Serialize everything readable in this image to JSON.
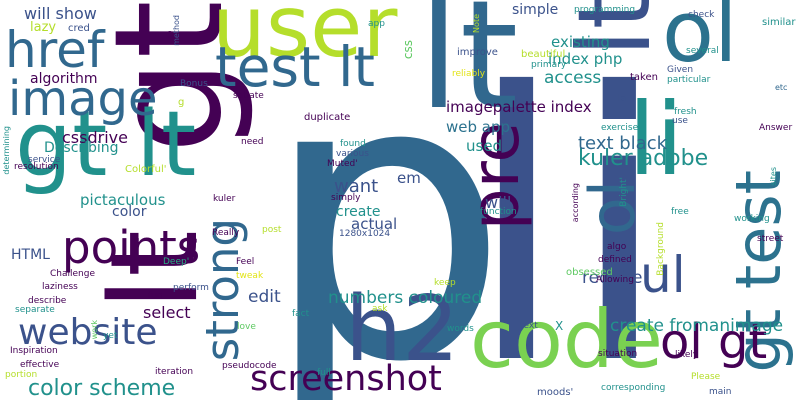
{
  "background": "#ffffff",
  "palette": {
    "dark_purple": "#440154",
    "indigo": "#3b528b",
    "steel_blue": "#31688e",
    "teal_blue": "#2c728e",
    "teal": "#21918c",
    "sea_green": "#28ae80",
    "green": "#5ec962",
    "light_green": "#7ad151",
    "lime": "#b5de2b",
    "yellow": "#e2e418"
  },
  "words": [
    {
      "text": "p",
      "color": "#31688e",
      "vertical": false
    },
    {
      "text": "li",
      "color": "#3b528b",
      "vertical": false
    },
    {
      "text": "lt",
      "color": "#31688e",
      "vertical": false
    },
    {
      "text": "gt",
      "color": "#440154",
      "vertical": true
    },
    {
      "text": "user",
      "color": "#b5de2b",
      "vertical": false
    },
    {
      "text": "ol",
      "color": "#2c728e",
      "vertical": false
    },
    {
      "text": "code",
      "color": "#7ad151",
      "vertical": false
    },
    {
      "text": "h2",
      "color": "#3b528b",
      "vertical": false
    },
    {
      "text": "lt",
      "color": "#440154",
      "vertical": true
    },
    {
      "text": "gt lt",
      "color": "#21918c",
      "vertical": false
    },
    {
      "text": "test lt",
      "color": "#31688e",
      "vertical": false
    },
    {
      "text": "href",
      "color": "#31688e",
      "vertical": false
    },
    {
      "text": "image",
      "color": "#31688e",
      "vertical": false
    },
    {
      "text": "gt test",
      "color": "#2c728e",
      "vertical": true
    },
    {
      "text": "pre",
      "color": "#440154",
      "vertical": true
    },
    {
      "text": "lt",
      "color": "#3b528b",
      "vertical": true
    },
    {
      "text": "ol",
      "color": "#31688e",
      "vertical": true
    },
    {
      "text": "ul",
      "color": "#3b528b",
      "vertical": false
    },
    {
      "text": "ol gt",
      "color": "#440154",
      "vertical": false
    },
    {
      "text": "li",
      "color": "#21918c",
      "vertical": false
    },
    {
      "text": "points",
      "color": "#440154",
      "vertical": false
    },
    {
      "text": "strong",
      "color": "#31688e",
      "vertical": true
    },
    {
      "text": "website",
      "color": "#3b528b",
      "vertical": false
    },
    {
      "text": "screenshot",
      "color": "#440154",
      "vertical": false
    },
    {
      "text": "color scheme",
      "color": "#21918c",
      "vertical": false
    },
    {
      "text": "kuler adobe",
      "color": "#21918c",
      "vertical": false
    },
    {
      "text": "text black",
      "color": "#31688e",
      "vertical": false
    },
    {
      "text": "create fromanimage",
      "color": "#21918c",
      "vertical": false
    },
    {
      "text": "numbers coloured",
      "color": "#21918c",
      "vertical": false
    },
    {
      "text": "will show",
      "color": "#3b528b",
      "vertical": false
    },
    {
      "text": "lazy",
      "color": "#b5de2b",
      "vertical": false
    },
    {
      "text": "cred",
      "color": "#3b528b",
      "vertical": false
    },
    {
      "text": "algorithm",
      "color": "#440154",
      "vertical": false
    },
    {
      "text": "cssdrive",
      "color": "#440154",
      "vertical": false
    },
    {
      "text": "Describing",
      "color": "#21918c",
      "vertical": false
    },
    {
      "text": "pictaculous",
      "color": "#21918c",
      "vertical": false
    },
    {
      "text": "color",
      "color": "#3b528b",
      "vertical": false
    },
    {
      "text": "HTML",
      "color": "#3b528b",
      "vertical": false
    },
    {
      "text": "edit",
      "color": "#3b528b",
      "vertical": false
    },
    {
      "text": "select",
      "color": "#440154",
      "vertical": false
    },
    {
      "text": "want",
      "color": "#3b528b",
      "vertical": false
    },
    {
      "text": "create",
      "color": "#21918c",
      "vertical": false
    },
    {
      "text": "actual",
      "color": "#3b528b",
      "vertical": false
    },
    {
      "text": "used",
      "color": "#21918c",
      "vertical": false
    },
    {
      "text": "will",
      "color": "#3b528b",
      "vertical": false
    },
    {
      "text": "em",
      "color": "#3b528b",
      "vertical": false
    },
    {
      "text": "web app",
      "color": "#2c728e",
      "vertical": false
    },
    {
      "text": "imagepalette index",
      "color": "#440154",
      "vertical": false
    },
    {
      "text": "access",
      "color": "#21918c",
      "vertical": false
    },
    {
      "text": "existing",
      "color": "#21918c",
      "vertical": false
    },
    {
      "text": "index php",
      "color": "#21918c",
      "vertical": false
    },
    {
      "text": "simple",
      "color": "#3b528b",
      "vertical": false
    },
    {
      "text": "require",
      "color": "#3b528b",
      "vertical": false
    },
    {
      "text": "css",
      "color": "#5ec962",
      "vertical": true
    },
    {
      "text": "improve",
      "color": "#3b528b",
      "vertical": false
    },
    {
      "text": "reliably",
      "color": "#e2e418",
      "vertical": false
    },
    {
      "text": "primary",
      "color": "#21918c",
      "vertical": false
    },
    {
      "text": "beautiful",
      "color": "#b5de2b",
      "vertical": false
    },
    {
      "text": "programming",
      "color": "#21918c",
      "vertical": false
    },
    {
      "text": "Given",
      "color": "#3b528b",
      "vertical": false
    },
    {
      "text": "particular",
      "color": "#21918c",
      "vertical": false
    },
    {
      "text": "taken",
      "color": "#440154",
      "vertical": false
    },
    {
      "text": "check",
      "color": "#3b528b",
      "vertical": false
    },
    {
      "text": "similar",
      "color": "#21918c",
      "vertical": false
    },
    {
      "text": "etc",
      "color": "#31688e",
      "vertical": false
    },
    {
      "text": "several",
      "color": "#21918c",
      "vertical": false
    },
    {
      "text": "app",
      "color": "#21918c",
      "vertical": false
    },
    {
      "text": "Note",
      "color": "#b5de2b",
      "vertical": true
    },
    {
      "text": "method",
      "color": "#3b528b",
      "vertical": true
    },
    {
      "text": "e",
      "color": "#440154",
      "vertical": false
    },
    {
      "text": "Bonus",
      "color": "#3b528b",
      "vertical": false
    },
    {
      "text": "satiate",
      "color": "#440154",
      "vertical": false
    },
    {
      "text": "duplicate",
      "color": "#440154",
      "vertical": false
    },
    {
      "text": "g",
      "color": "#b5de2b",
      "vertical": false
    },
    {
      "text": "need",
      "color": "#440154",
      "vertical": false
    },
    {
      "text": "found",
      "color": "#21918c",
      "vertical": false
    },
    {
      "text": "various",
      "color": "#3b528b",
      "vertical": false
    },
    {
      "text": "Muted'",
      "color": "#440154",
      "vertical": false
    },
    {
      "text": "Colorful'",
      "color": "#b5de2b",
      "vertical": false
    },
    {
      "text": "simply",
      "color": "#440154",
      "vertical": false
    },
    {
      "text": "kuler",
      "color": "#440154",
      "vertical": false
    },
    {
      "text": "1280x1024",
      "color": "#3b528b",
      "vertical": false
    },
    {
      "text": "Really",
      "color": "#440154",
      "vertical": false
    },
    {
      "text": "post",
      "color": "#b5de2b",
      "vertical": false
    },
    {
      "text": "Feel",
      "color": "#440154",
      "vertical": false
    },
    {
      "text": "tweak",
      "color": "#e2e418",
      "vertical": false
    },
    {
      "text": "Deep'",
      "color": "#28ae80",
      "vertical": false
    },
    {
      "text": "fun",
      "color": "#440154",
      "vertical": false
    },
    {
      "text": "Challenge",
      "color": "#440154",
      "vertical": false
    },
    {
      "text": "laziness",
      "color": "#440154",
      "vertical": false
    },
    {
      "text": "perform",
      "color": "#3b528b",
      "vertical": false
    },
    {
      "text": "describe",
      "color": "#440154",
      "vertical": false
    },
    {
      "text": "separate",
      "color": "#21918c",
      "vertical": false
    },
    {
      "text": "work",
      "color": "#5ec962",
      "vertical": true
    },
    {
      "text": "yet",
      "color": "#21918c",
      "vertical": false
    },
    {
      "text": "love",
      "color": "#5ec962",
      "vertical": false
    },
    {
      "text": "fact",
      "color": "#21918c",
      "vertical": false
    },
    {
      "text": "ask",
      "color": "#b5de2b",
      "vertical": false
    },
    {
      "text": "Inspiration",
      "color": "#440154",
      "vertical": false
    },
    {
      "text": "effective",
      "color": "#440154",
      "vertical": false
    },
    {
      "text": "portion",
      "color": "#b5de2b",
      "vertical": false
    },
    {
      "text": "pseudocode",
      "color": "#440154",
      "vertical": false
    },
    {
      "text": "iteration",
      "color": "#440154",
      "vertical": false
    },
    {
      "text": "full",
      "color": "#21918c",
      "vertical": false
    },
    {
      "text": "words",
      "color": "#21918c",
      "vertical": false
    },
    {
      "text": "text",
      "color": "#3b528b",
      "vertical": false
    },
    {
      "text": "X",
      "color": "#21918c",
      "vertical": false
    },
    {
      "text": "moods'",
      "color": "#3b528b",
      "vertical": false
    },
    {
      "text": "corresponding",
      "color": "#21918c",
      "vertical": false
    },
    {
      "text": "main",
      "color": "#3b528b",
      "vertical": false
    },
    {
      "text": "Please",
      "color": "#b5de2b",
      "vertical": false
    },
    {
      "text": "likely",
      "color": "#440154",
      "vertical": false
    },
    {
      "text": "situation",
      "color": "#440154",
      "vertical": false
    },
    {
      "text": "Allowing",
      "color": "#440154",
      "vertical": false
    },
    {
      "text": "obsessed",
      "color": "#5ec962",
      "vertical": false
    },
    {
      "text": "keep",
      "color": "#b5de2b",
      "vertical": false
    },
    {
      "text": "defined",
      "color": "#440154",
      "vertical": false
    },
    {
      "text": "algo",
      "color": "#440154",
      "vertical": false
    },
    {
      "text": "function",
      "color": "#21918c",
      "vertical": false
    },
    {
      "text": "according",
      "color": "#440154",
      "vertical": true
    },
    {
      "text": "Bright'",
      "color": "#21918c",
      "vertical": true
    },
    {
      "text": "Background",
      "color": "#b5de2b",
      "vertical": true
    },
    {
      "text": "free",
      "color": "#21918c",
      "vertical": false
    },
    {
      "text": "exercise",
      "color": "#21918c",
      "vertical": false
    },
    {
      "text": "la",
      "color": "#3b528b",
      "vertical": false
    },
    {
      "text": "use",
      "color": "#3b528b",
      "vertical": false
    },
    {
      "text": "fresh",
      "color": "#21918c",
      "vertical": false
    },
    {
      "text": "Answer",
      "color": "#440154",
      "vertical": false
    },
    {
      "text": "sites",
      "color": "#21918c",
      "vertical": true
    },
    {
      "text": "working",
      "color": "#21918c",
      "vertical": false
    },
    {
      "text": "street",
      "color": "#440154",
      "vertical": false
    },
    {
      "text": "service",
      "color": "#3b528b",
      "vertical": false
    },
    {
      "text": "resolution",
      "color": "#440154",
      "vertical": false
    },
    {
      "text": "determining",
      "color": "#21918c",
      "vertical": true
    }
  ]
}
